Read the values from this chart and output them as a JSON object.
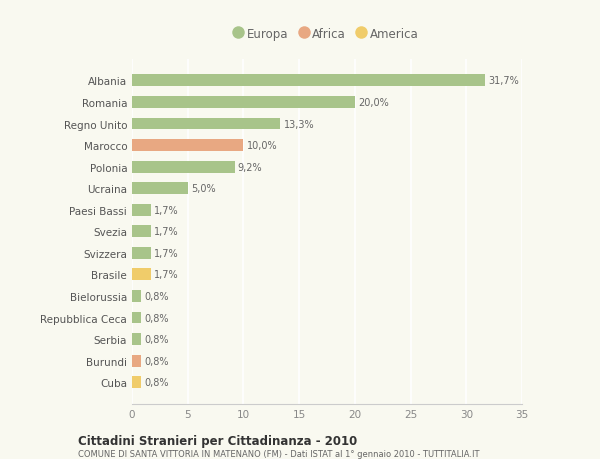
{
  "categories": [
    "Albania",
    "Romania",
    "Regno Unito",
    "Marocco",
    "Polonia",
    "Ucraina",
    "Paesi Bassi",
    "Svezia",
    "Svizzera",
    "Brasile",
    "Bielorussia",
    "Repubblica Ceca",
    "Serbia",
    "Burundi",
    "Cuba"
  ],
  "values": [
    31.7,
    20.0,
    13.3,
    10.0,
    9.2,
    5.0,
    1.7,
    1.7,
    1.7,
    1.7,
    0.8,
    0.8,
    0.8,
    0.8,
    0.8
  ],
  "labels": [
    "31,7%",
    "20,0%",
    "13,3%",
    "10,0%",
    "9,2%",
    "5,0%",
    "1,7%",
    "1,7%",
    "1,7%",
    "1,7%",
    "0,8%",
    "0,8%",
    "0,8%",
    "0,8%",
    "0,8%"
  ],
  "continents": [
    "Europa",
    "Europa",
    "Europa",
    "Africa",
    "Europa",
    "Europa",
    "Europa",
    "Europa",
    "Europa",
    "America",
    "Europa",
    "Europa",
    "Europa",
    "Africa",
    "America"
  ],
  "colors": {
    "Europa": "#a8c48a",
    "Africa": "#e8a882",
    "America": "#f0cc6a"
  },
  "legend_order": [
    "Europa",
    "Africa",
    "America"
  ],
  "legend_colors": [
    "#a8c48a",
    "#e8a882",
    "#f0cc6a"
  ],
  "xlim": [
    0,
    35
  ],
  "xticks": [
    0,
    5,
    10,
    15,
    20,
    25,
    30,
    35
  ],
  "title": "Cittadini Stranieri per Cittadinanza - 2010",
  "subtitle": "COMUNE DI SANTA VITTORIA IN MATENANO (FM) - Dati ISTAT al 1° gennaio 2010 - TUTTITALIA.IT",
  "background_color": "#f9f9f0",
  "grid_color": "#e8e8d8",
  "bar_height": 0.55
}
